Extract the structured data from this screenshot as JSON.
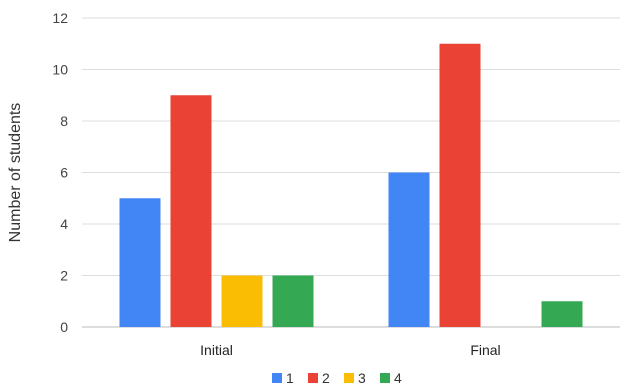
{
  "chart_data": {
    "type": "bar",
    "title": "",
    "xlabel": "",
    "ylabel": "Number of students",
    "ylim": [
      0,
      12
    ],
    "yticks": [
      0,
      2,
      4,
      6,
      8,
      10,
      12
    ],
    "grid": true,
    "legend_position": "bottom",
    "categories": [
      "Initial",
      "Final"
    ],
    "series": [
      {
        "name": "1",
        "color": "#4285F4",
        "values": [
          5,
          6
        ]
      },
      {
        "name": "2",
        "color": "#EA4335",
        "values": [
          9,
          11
        ]
      },
      {
        "name": "3",
        "color": "#FBBC04",
        "values": [
          2,
          0
        ]
      },
      {
        "name": "4",
        "color": "#34A853",
        "values": [
          2,
          1
        ]
      }
    ]
  }
}
